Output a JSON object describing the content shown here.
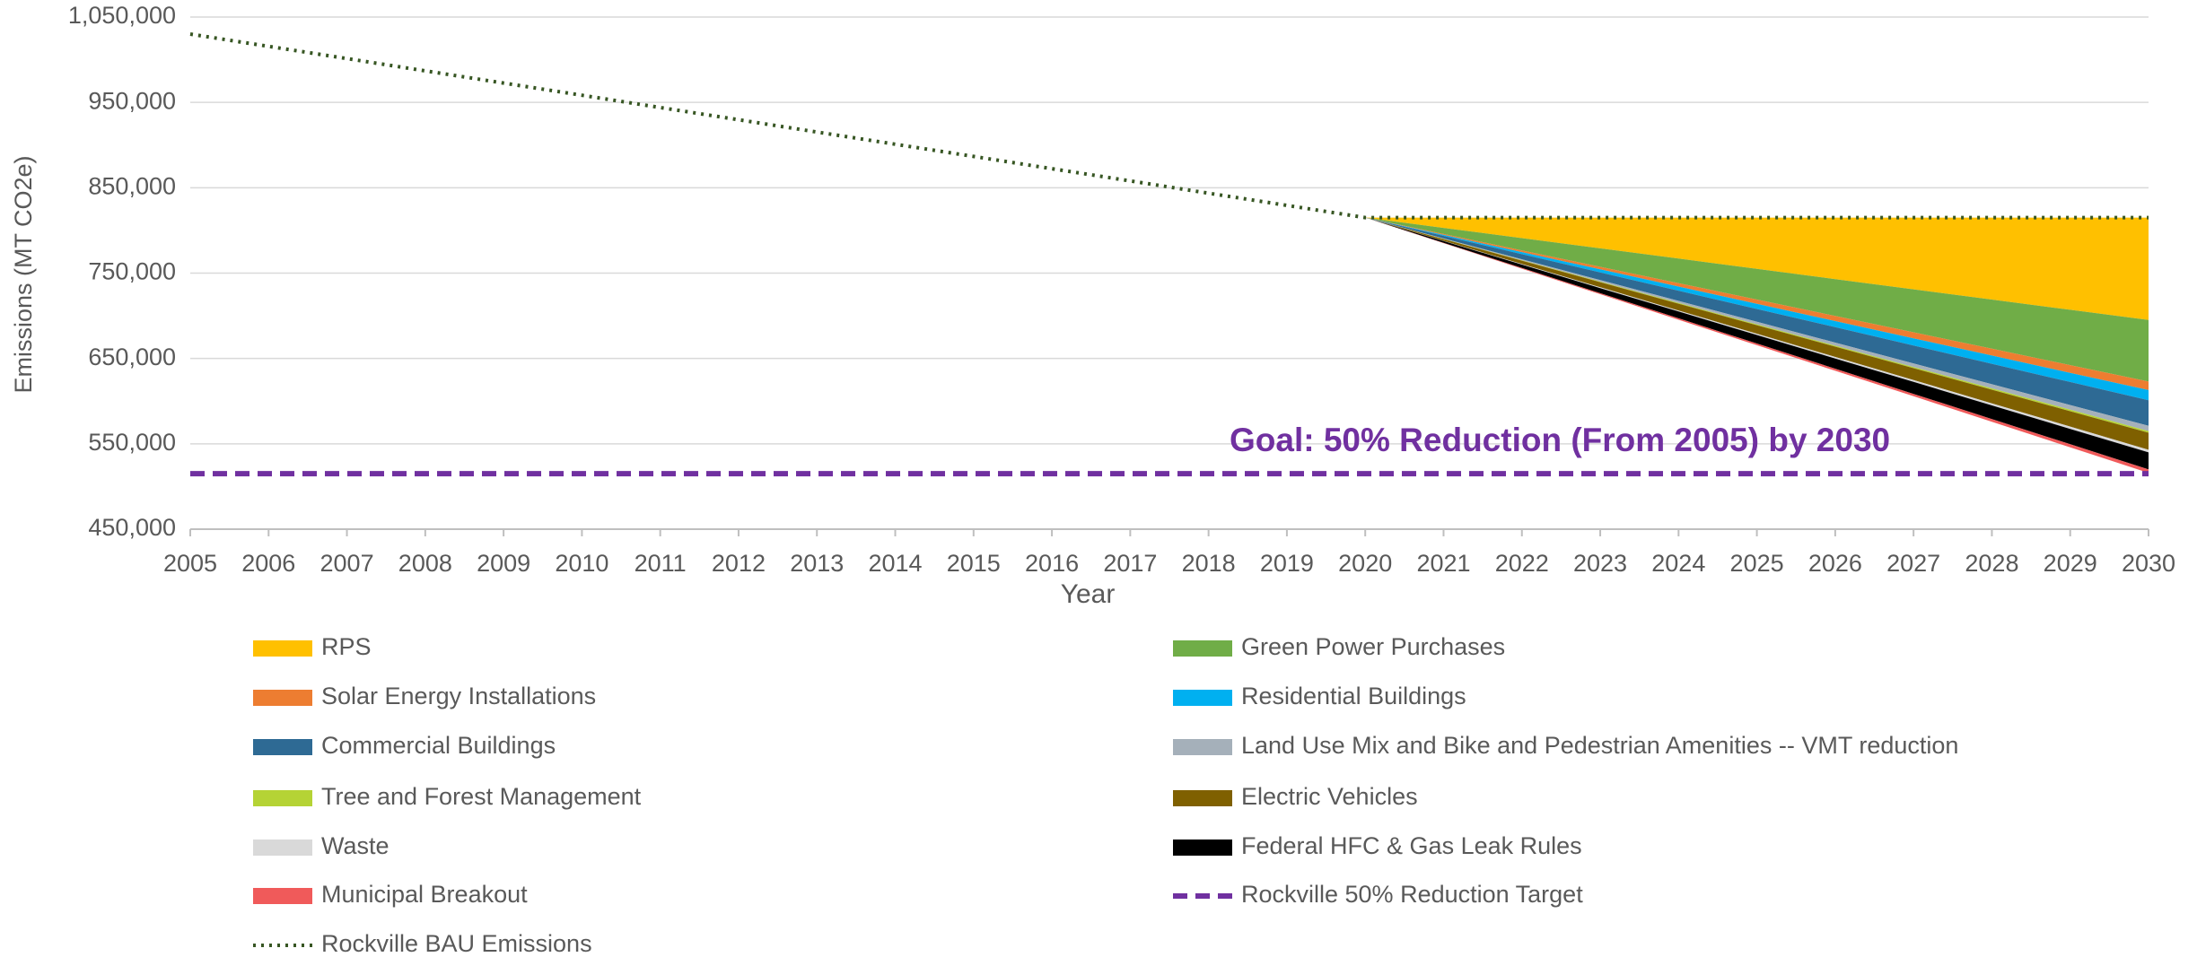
{
  "chart_data": {
    "type": "area",
    "stacked_from": "Rockville BAU Emissions",
    "x_label": "Year",
    "y_label": "Emissions  (MT CO2e)",
    "annotation": "Goal: 50% Reduction (From 2005) by 2030",
    "categories": [
      "2005",
      "2006",
      "2007",
      "2008",
      "2009",
      "2010",
      "2011",
      "2012",
      "2013",
      "2014",
      "2015",
      "2016",
      "2017",
      "2018",
      "2019",
      "2020",
      "2021",
      "2022",
      "2023",
      "2024",
      "2025",
      "2026",
      "2027",
      "2028",
      "2029",
      "2030"
    ],
    "ylim": [
      450000,
      1050000
    ],
    "yticks": [
      {
        "value": 450000,
        "label": "450,000"
      },
      {
        "value": 550000,
        "label": "550,000"
      },
      {
        "value": 650000,
        "label": "650,000"
      },
      {
        "value": 750000,
        "label": "750,000"
      },
      {
        "value": 850000,
        "label": "850,000"
      },
      {
        "value": 950000,
        "label": "950,000"
      },
      {
        "value": 1050000,
        "label": "1,050,000"
      }
    ],
    "grid": true,
    "legend": "bottom",
    "series": [
      {
        "name": "RPS",
        "color": "#FFC000",
        "kind": "area",
        "values": [
          null,
          null,
          null,
          null,
          null,
          null,
          null,
          null,
          null,
          null,
          null,
          null,
          null,
          null,
          null,
          0,
          12000,
          24000,
          36000,
          48000,
          60000,
          72000,
          84000,
          96000,
          108000,
          120000
        ]
      },
      {
        "name": "Green Power Purchases",
        "color": "#70AD47",
        "kind": "area",
        "values": [
          null,
          null,
          null,
          null,
          null,
          null,
          null,
          null,
          null,
          null,
          null,
          null,
          null,
          null,
          null,
          0,
          7200,
          14400,
          21600,
          28800,
          36000,
          43200,
          50400,
          57600,
          64800,
          72000
        ]
      },
      {
        "name": "Solar Energy Installations",
        "color": "#ED7D31",
        "kind": "area",
        "values": [
          null,
          null,
          null,
          null,
          null,
          null,
          null,
          null,
          null,
          null,
          null,
          null,
          null,
          null,
          null,
          0,
          1000,
          2000,
          3000,
          4000,
          5000,
          6000,
          7000,
          8000,
          9000,
          10000
        ]
      },
      {
        "name": "Residential Buildings",
        "color": "#00B0F0",
        "kind": "area",
        "values": [
          null,
          null,
          null,
          null,
          null,
          null,
          null,
          null,
          null,
          null,
          null,
          null,
          null,
          null,
          null,
          0,
          1200,
          2400,
          3600,
          4800,
          6000,
          7200,
          8400,
          9600,
          10800,
          12000
        ]
      },
      {
        "name": "Commercial Buildings",
        "color": "#2E6A94",
        "kind": "area",
        "values": [
          null,
          null,
          null,
          null,
          null,
          null,
          null,
          null,
          null,
          null,
          null,
          null,
          null,
          null,
          null,
          0,
          3000,
          6000,
          9000,
          12000,
          15000,
          18000,
          21000,
          24000,
          27000,
          30000
        ]
      },
      {
        "name": "Land Use Mix and Bike and Pedestrian Amenities -- VMT reduction",
        "color": "#A5B0BA",
        "kind": "area",
        "values": [
          null,
          null,
          null,
          null,
          null,
          null,
          null,
          null,
          null,
          null,
          null,
          null,
          null,
          null,
          null,
          0,
          600,
          1200,
          1800,
          2400,
          3000,
          3600,
          4200,
          4800,
          5400,
          6000
        ]
      },
      {
        "name": "Tree and Forest Management",
        "color": "#B5D335",
        "kind": "area",
        "values": [
          null,
          null,
          null,
          null,
          null,
          null,
          null,
          null,
          null,
          null,
          null,
          null,
          null,
          null,
          null,
          0,
          200,
          400,
          600,
          800,
          1000,
          1200,
          1400,
          1600,
          1800,
          2000
        ]
      },
      {
        "name": "Electric Vehicles",
        "color": "#7F6000",
        "kind": "area",
        "values": [
          null,
          null,
          null,
          null,
          null,
          null,
          null,
          null,
          null,
          null,
          null,
          null,
          null,
          null,
          null,
          0,
          2000,
          4000,
          6000,
          8000,
          10000,
          12000,
          14000,
          16000,
          18000,
          20000
        ]
      },
      {
        "name": "Waste",
        "color": "#D9D9D9",
        "kind": "area",
        "values": [
          null,
          null,
          null,
          null,
          null,
          null,
          null,
          null,
          null,
          null,
          null,
          null,
          null,
          null,
          null,
          0,
          300,
          600,
          900,
          1200,
          1500,
          1800,
          2100,
          2400,
          2700,
          3000
        ]
      },
      {
        "name": "Federal HFC & Gas Leak Rules",
        "color": "#000000",
        "kind": "area",
        "values": [
          null,
          null,
          null,
          null,
          null,
          null,
          null,
          null,
          null,
          null,
          null,
          null,
          null,
          null,
          null,
          0,
          2000,
          4000,
          6000,
          8000,
          10000,
          12000,
          14000,
          16000,
          18000,
          20000
        ]
      },
      {
        "name": "Municipal  Breakout",
        "color": "#F05A5A",
        "kind": "area",
        "values": [
          null,
          null,
          null,
          null,
          null,
          null,
          null,
          null,
          null,
          null,
          null,
          null,
          null,
          null,
          null,
          0,
          400,
          800,
          1200,
          1600,
          2000,
          2400,
          2800,
          3200,
          3600,
          4000
        ]
      },
      {
        "name": "Rockville 50% Reduction Target",
        "color": "#7030A0",
        "kind": "line",
        "line_style": "dashed",
        "values": [
          515000,
          515000,
          515000,
          515000,
          515000,
          515000,
          515000,
          515000,
          515000,
          515000,
          515000,
          515000,
          515000,
          515000,
          515000,
          515000,
          515000,
          515000,
          515000,
          515000,
          515000,
          515000,
          515000,
          515000,
          515000,
          515000
        ]
      },
      {
        "name": "Rockville BAU Emissions",
        "color": "#375623",
        "kind": "line",
        "line_style": "dotted",
        "values": [
          1030000,
          1015667,
          1001333,
          987000,
          972667,
          958333,
          944000,
          929667,
          915333,
          901000,
          886667,
          872333,
          858000,
          843667,
          829333,
          815000,
          815000,
          815000,
          815000,
          815000,
          815000,
          815000,
          815000,
          815000,
          815000,
          815000
        ]
      }
    ]
  }
}
